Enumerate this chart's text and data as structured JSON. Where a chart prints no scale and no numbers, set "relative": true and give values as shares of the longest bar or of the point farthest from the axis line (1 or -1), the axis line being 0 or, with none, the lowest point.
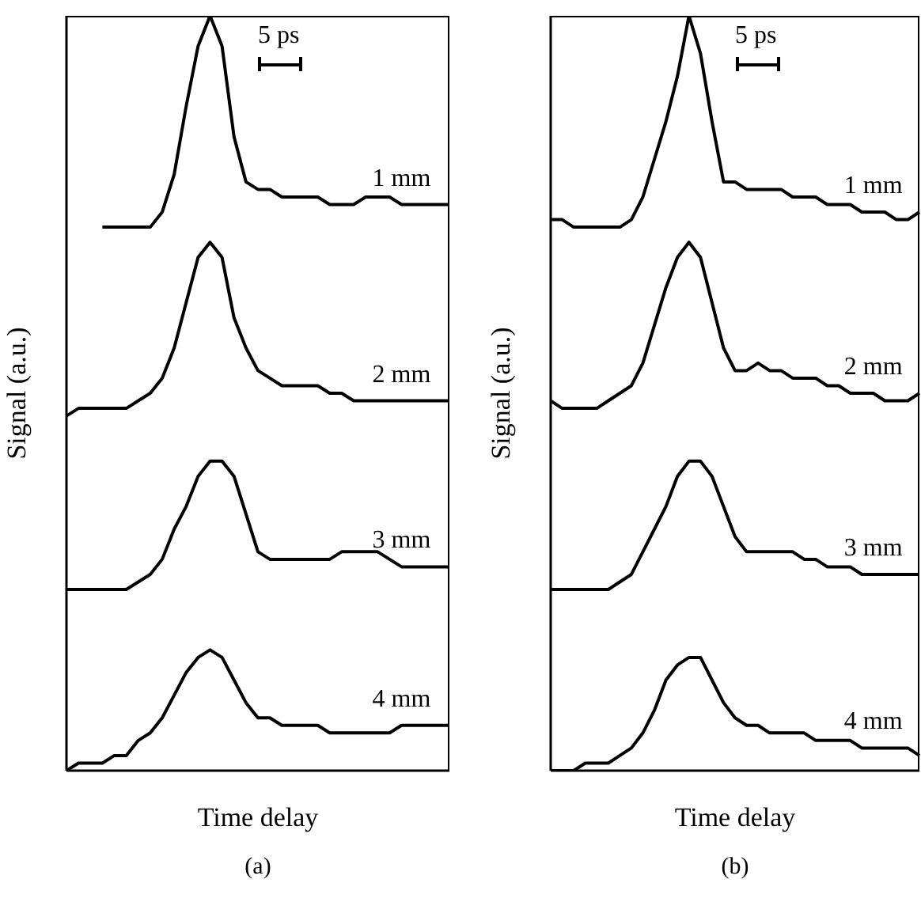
{
  "chart_data": [
    {
      "type": "line",
      "relative": true,
      "xlabel": "Time delay",
      "ylabel": "Signal (a.u.)",
      "annotations": [
        "5 ps",
        "(a)"
      ],
      "categories": [
        null,
        null,
        null,
        null,
        null,
        null,
        null,
        null,
        null,
        null,
        null,
        null,
        null,
        null,
        null,
        null,
        null,
        null,
        null,
        null,
        null,
        null,
        null,
        null,
        null,
        null,
        null,
        null,
        null,
        null,
        null,
        null,
        null
      ],
      "series": [
        {
          "name": "1 mm",
          "color": "#000000",
          "values": [
            null,
            null,
            null,
            0.72,
            0.72,
            0.72,
            0.72,
            0.72,
            0.74,
            0.79,
            0.88,
            0.96,
            1.0,
            0.96,
            0.84,
            0.78,
            0.77,
            0.77,
            0.76,
            0.76,
            0.76,
            0.76,
            0.75,
            0.75,
            0.75,
            0.76,
            0.76,
            0.76,
            0.75,
            0.75,
            0.75,
            0.75,
            0.75
          ]
        },
        {
          "name": "2 mm",
          "color": "#000000",
          "values": [
            0.47,
            0.48,
            0.48,
            0.48,
            0.48,
            0.48,
            0.49,
            0.5,
            0.52,
            0.56,
            0.62,
            0.68,
            0.7,
            0.68,
            0.6,
            0.56,
            0.53,
            0.52,
            0.51,
            0.51,
            0.51,
            0.51,
            0.5,
            0.5,
            0.49,
            0.49,
            0.49,
            0.49,
            0.49,
            0.49,
            0.49,
            0.49,
            0.49
          ]
        },
        {
          "name": "3 mm",
          "color": "#000000",
          "values": [
            0.24,
            0.24,
            0.24,
            0.24,
            0.24,
            0.24,
            0.25,
            0.26,
            0.28,
            0.32,
            0.35,
            0.39,
            0.41,
            0.41,
            0.39,
            0.34,
            0.29,
            0.28,
            0.28,
            0.28,
            0.28,
            0.28,
            0.28,
            0.29,
            0.29,
            0.29,
            0.29,
            0.28,
            0.27,
            0.27,
            0.27,
            0.27,
            0.27
          ]
        },
        {
          "name": "4 mm",
          "color": "#000000",
          "values": [
            0.0,
            0.01,
            0.01,
            0.01,
            0.02,
            0.02,
            0.04,
            0.05,
            0.07,
            0.1,
            0.13,
            0.15,
            0.16,
            0.15,
            0.12,
            0.09,
            0.07,
            0.07,
            0.06,
            0.06,
            0.06,
            0.06,
            0.05,
            0.05,
            0.05,
            0.05,
            0.05,
            0.05,
            0.06,
            0.06,
            0.06,
            0.06,
            0.06
          ]
        }
      ]
    },
    {
      "type": "line",
      "relative": true,
      "xlabel": "Time delay",
      "ylabel": "Signal (a.u.)",
      "annotations": [
        "5 ps",
        "(b)"
      ],
      "categories": [
        null,
        null,
        null,
        null,
        null,
        null,
        null,
        null,
        null,
        null,
        null,
        null,
        null,
        null,
        null,
        null,
        null,
        null,
        null,
        null,
        null,
        null,
        null,
        null,
        null,
        null,
        null,
        null,
        null,
        null,
        null,
        null,
        null
      ],
      "series": [
        {
          "name": "1 mm",
          "color": "#000000",
          "values": [
            0.73,
            0.73,
            0.72,
            0.72,
            0.72,
            0.72,
            0.72,
            0.73,
            0.76,
            0.81,
            0.86,
            0.92,
            1.0,
            0.95,
            0.86,
            0.78,
            0.78,
            0.77,
            0.77,
            0.77,
            0.77,
            0.76,
            0.76,
            0.76,
            0.75,
            0.75,
            0.75,
            0.74,
            0.74,
            0.74,
            0.73,
            0.73,
            0.74
          ]
        },
        {
          "name": "2 mm",
          "color": "#000000",
          "values": [
            0.49,
            0.48,
            0.48,
            0.48,
            0.48,
            0.49,
            0.5,
            0.51,
            0.54,
            0.59,
            0.64,
            0.68,
            0.7,
            0.68,
            0.62,
            0.56,
            0.53,
            0.53,
            0.54,
            0.53,
            0.53,
            0.52,
            0.52,
            0.52,
            0.51,
            0.51,
            0.5,
            0.5,
            0.5,
            0.49,
            0.49,
            0.49,
            0.5
          ]
        },
        {
          "name": "3 mm",
          "color": "#000000",
          "values": [
            0.24,
            0.24,
            0.24,
            0.24,
            0.24,
            0.24,
            0.25,
            0.26,
            0.29,
            0.32,
            0.35,
            0.39,
            0.41,
            0.41,
            0.39,
            0.35,
            0.31,
            0.29,
            0.29,
            0.29,
            0.29,
            0.29,
            0.28,
            0.28,
            0.27,
            0.27,
            0.27,
            0.26,
            0.26,
            0.26,
            0.26,
            0.26,
            0.26
          ]
        },
        {
          "name": "4 mm",
          "color": "#000000",
          "values": [
            0.0,
            0.0,
            0.0,
            0.01,
            0.01,
            0.01,
            0.02,
            0.03,
            0.05,
            0.08,
            0.12,
            0.14,
            0.15,
            0.15,
            0.12,
            0.09,
            0.07,
            0.06,
            0.06,
            0.05,
            0.05,
            0.05,
            0.05,
            0.04,
            0.04,
            0.04,
            0.04,
            0.03,
            0.03,
            0.03,
            0.03,
            0.03,
            0.02
          ]
        }
      ]
    }
  ]
}
